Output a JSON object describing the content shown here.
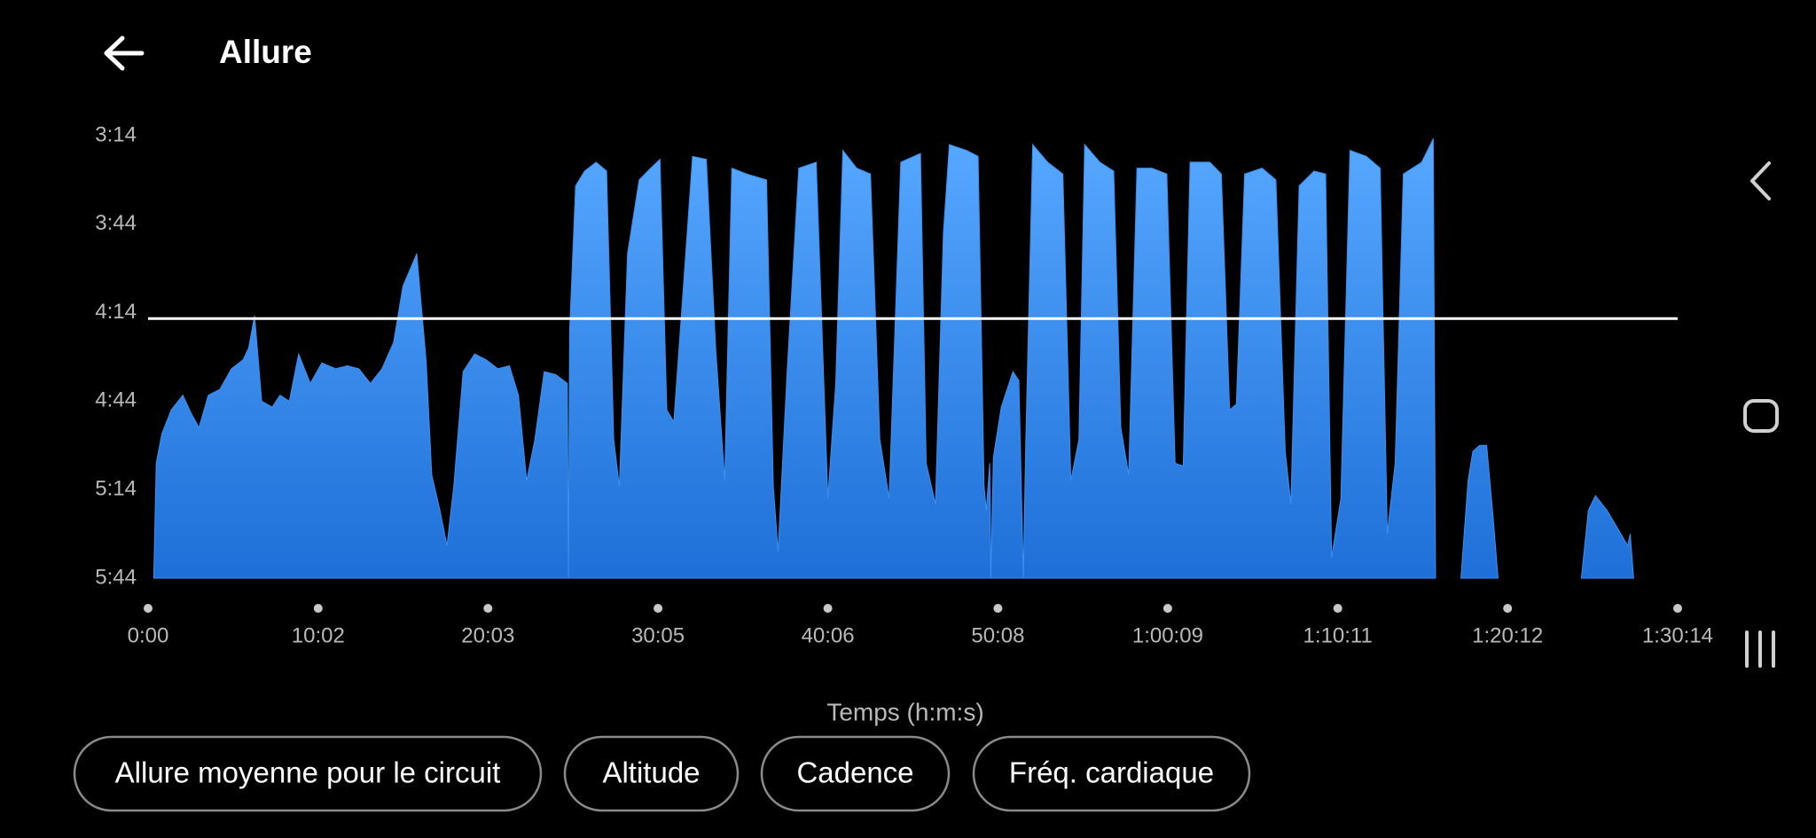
{
  "header": {
    "title": "Allure"
  },
  "chart_data": {
    "type": "area",
    "x_label": "Temps (h:m:s)",
    "xlim": [
      0,
      5414
    ],
    "ylim": [
      344,
      194
    ],
    "xticks": [
      {
        "value": 0,
        "label": "0:00"
      },
      {
        "value": 602,
        "label": "10:02"
      },
      {
        "value": 1203,
        "label": "20:03"
      },
      {
        "value": 1805,
        "label": "30:05"
      },
      {
        "value": 2406,
        "label": "40:06"
      },
      {
        "value": 3008,
        "label": "50:08"
      },
      {
        "value": 3609,
        "label": "1:00:09"
      },
      {
        "value": 4211,
        "label": "1:10:11"
      },
      {
        "value": 4812,
        "label": "1:20:12"
      },
      {
        "value": 5414,
        "label": "1:30:14"
      }
    ],
    "yticks": [
      {
        "value": 194,
        "label": "3:14"
      },
      {
        "value": 224,
        "label": "3:44"
      },
      {
        "value": 254,
        "label": "4:14"
      },
      {
        "value": 284,
        "label": "4:44"
      },
      {
        "value": 314,
        "label": "5:14"
      },
      {
        "value": 344,
        "label": "5:44"
      }
    ],
    "average_line": 256,
    "average_line_color": "#ffffff",
    "series": [
      {
        "color": "#3d8ff0",
        "x": [
          20,
          29,
          49,
          82,
          123,
          152,
          180,
          213,
          254,
          295,
          336,
          356,
          377,
          402,
          439,
          467,
          500,
          533,
          574,
          615,
          664,
          705,
          746,
          787,
          828,
          869,
          902,
          951,
          984,
          1004,
          1033,
          1058,
          1082,
          1115,
          1156,
          1197,
          1238,
          1279,
          1311,
          1340,
          1369,
          1402,
          1443,
          1484,
          1488,
          1492,
          1513,
          1545,
          1586,
          1623,
          1648,
          1668,
          1697,
          1738,
          1779,
          1812,
          1836,
          1861,
          1894,
          1927,
          1976,
          2009,
          2041,
          2066,
          2119,
          2189,
          2213,
          2230,
          2262,
          2303,
          2365,
          2406,
          2434,
          2459,
          2508,
          2557,
          2590,
          2623,
          2664,
          2734,
          2754,
          2787,
          2815,
          2836,
          2897,
          2938,
          2959,
          2967,
          2979,
          2983,
          2992,
          3020,
          3061,
          3082,
          3098,
          3106,
          3131,
          3184,
          3238,
          3266,
          3295,
          3315,
          3369,
          3418,
          3443,
          3471,
          3500,
          3553,
          3606,
          3635,
          3664,
          3688,
          3758,
          3799,
          3828,
          3852,
          3881,
          3943,
          3992,
          4025,
          4045,
          4074,
          4127,
          4168,
          4189,
          4222,
          4254,
          4312,
          4361,
          4386,
          4414,
          4443,
          4508,
          4549,
          4557,
          null,
          4647,
          4672,
          4689,
          4713,
          4738,
          4762,
          4778,
          null,
          5073,
          5098,
          5123,
          5164,
          5213,
          5237,
          5246,
          5258
        ],
        "values": [
          344,
          305,
          295,
          287,
          282,
          288,
          293,
          282,
          280,
          273,
          270,
          266,
          255,
          284,
          286,
          282,
          284,
          268,
          278,
          271,
          273,
          272,
          273,
          278,
          273,
          264,
          245,
          234,
          270,
          309,
          321,
          333,
          313,
          274,
          268,
          270,
          273,
          272,
          282,
          311,
          297,
          274,
          275,
          278,
          344,
          260,
          211,
          206,
          203,
          206,
          297,
          313,
          234,
          209,
          205,
          202,
          287,
          291,
          246,
          201,
          202,
          266,
          311,
          205,
          207,
          209,
          313,
          335,
          274,
          205,
          203,
          317,
          278,
          199,
          205,
          207,
          297,
          317,
          203,
          200,
          305,
          319,
          227,
          197,
          199,
          201,
          313,
          321,
          305,
          344,
          303,
          286,
          274,
          277,
          344,
          301,
          197,
          203,
          207,
          311,
          297,
          197,
          203,
          206,
          293,
          309,
          205,
          205,
          207,
          305,
          306,
          203,
          203,
          207,
          287,
          285,
          207,
          205,
          209,
          301,
          319,
          211,
          206,
          207,
          337,
          317,
          199,
          201,
          205,
          329,
          305,
          207,
          203,
          195,
          344,
          null,
          344,
          311,
          301,
          299,
          299,
          325,
          344,
          null,
          344,
          321,
          316,
          321,
          329,
          333,
          329,
          344
        ]
      }
    ]
  },
  "buttons": [
    "Allure moyenne pour le circuit",
    "Altitude",
    "Cadence",
    "Fréq. cardiaque"
  ]
}
